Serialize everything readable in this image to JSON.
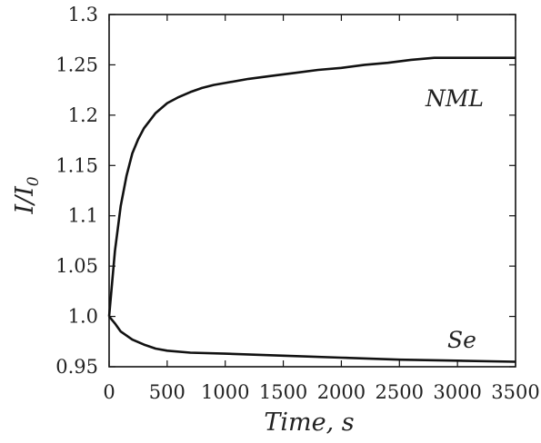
{
  "chart_data": {
    "type": "line",
    "xlabel": "Time, s",
    "ylabel": "I/I0",
    "xlim": [
      0,
      3500
    ],
    "ylim": [
      0.95,
      1.3
    ],
    "x_ticks": [
      "0",
      "500",
      "1000",
      "1500",
      "2000",
      "2500",
      "3000",
      "3500"
    ],
    "y_ticks": [
      "0.95",
      "1.0",
      "1.05",
      "1.1",
      "1.15",
      "1.2",
      "1.25",
      "1.3"
    ],
    "grid": false,
    "series": [
      {
        "name": "NML",
        "x": [
          0,
          50,
          100,
          150,
          200,
          250,
          300,
          400,
          500,
          600,
          700,
          800,
          900,
          1000,
          1200,
          1400,
          1600,
          1800,
          2000,
          2200,
          2400,
          2600,
          2800,
          3000,
          3200,
          3400,
          3500
        ],
        "y": [
          1.0,
          1.065,
          1.11,
          1.14,
          1.162,
          1.176,
          1.187,
          1.202,
          1.212,
          1.218,
          1.223,
          1.227,
          1.23,
          1.232,
          1.236,
          1.239,
          1.242,
          1.245,
          1.247,
          1.25,
          1.252,
          1.255,
          1.257,
          1.257,
          1.257,
          1.257,
          1.257
        ]
      },
      {
        "name": "Se",
        "x": [
          0,
          50,
          100,
          200,
          300,
          400,
          500,
          700,
          1000,
          1500,
          2000,
          2500,
          3000,
          3500
        ],
        "y": [
          1.0,
          0.993,
          0.985,
          0.977,
          0.972,
          0.968,
          0.966,
          0.964,
          0.963,
          0.961,
          0.959,
          0.957,
          0.956,
          0.955
        ]
      }
    ]
  }
}
